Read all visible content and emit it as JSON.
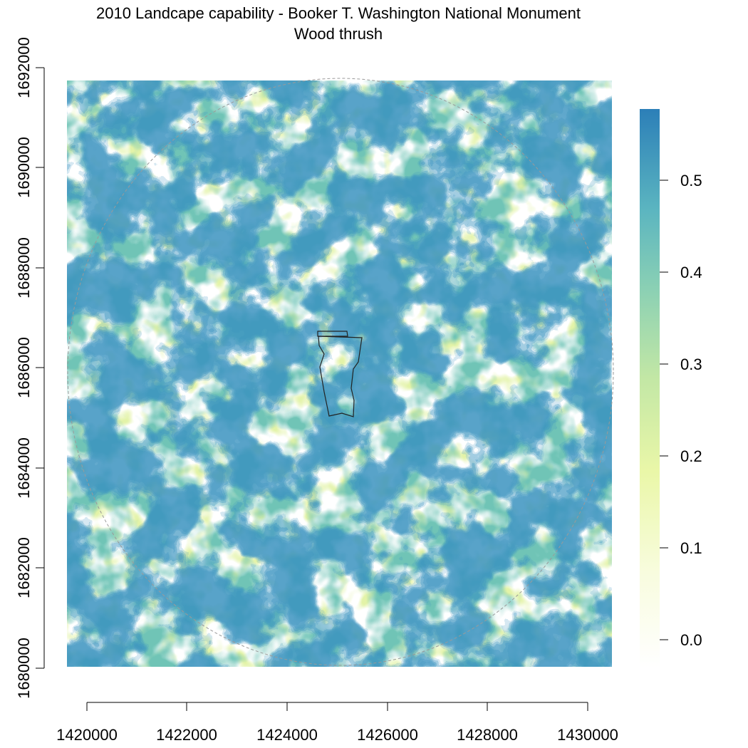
{
  "title": {
    "line1": "2010 Landcape capability - Booker T. Washington National Monument",
    "line2": "Wood thrush"
  },
  "map": {
    "x_ticks": [
      "1420000",
      "1422000",
      "1424000",
      "1426000",
      "1428000",
      "1430000"
    ],
    "y_ticks": [
      "1680000",
      "1682000",
      "1684000",
      "1686000",
      "1688000",
      "1690000",
      "1692000"
    ],
    "x_range": [
      1419600,
      1430500
    ],
    "y_range": [
      1680000,
      1691700
    ],
    "boundary_outline": "monument boundary (thin black polygon)",
    "buffer_outline": "dashed grey circle"
  },
  "legend": {
    "ticks": [
      "0.0",
      "0.1",
      "0.2",
      "0.3",
      "0.4",
      "0.5"
    ],
    "range": [
      0,
      0.575
    ],
    "colors": [
      "#ffffff",
      "#f7fbdf",
      "#eaf7a8",
      "#c4e8a6",
      "#8fd1b4",
      "#5db7c0",
      "#3f98c1",
      "#2c7fb8"
    ]
  }
}
